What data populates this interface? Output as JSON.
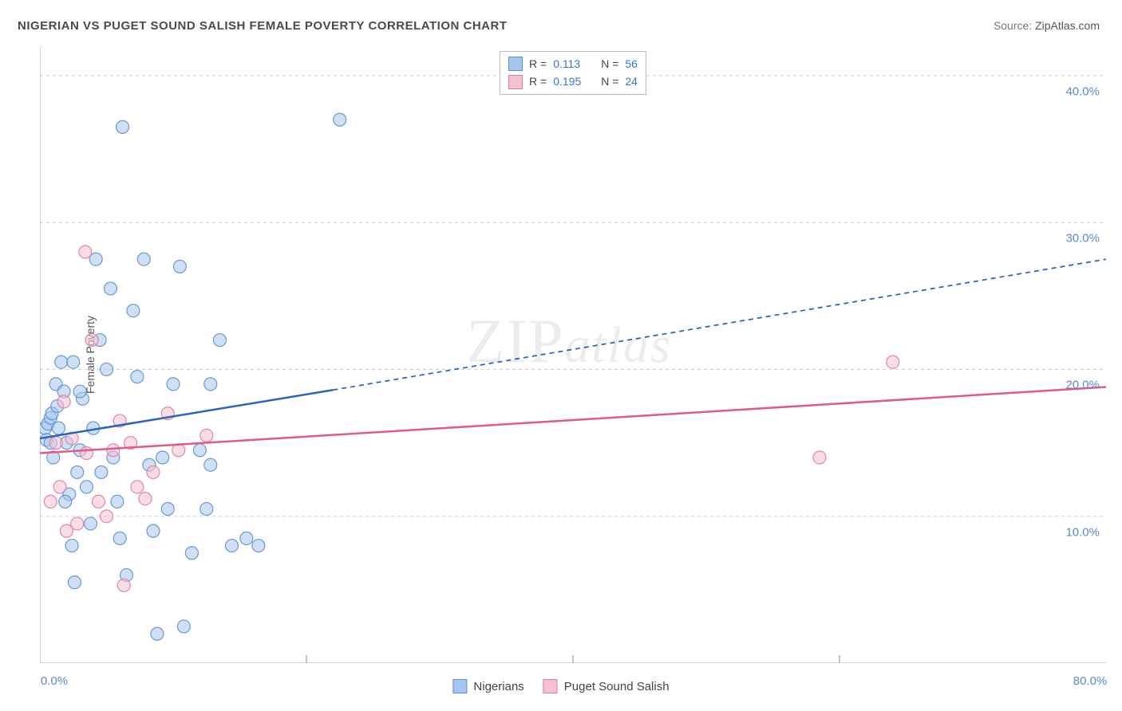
{
  "title": "NIGERIAN VS PUGET SOUND SALISH FEMALE POVERTY CORRELATION CHART",
  "source_label": "Source: ",
  "source_value": "ZipAtlas.com",
  "ylabel": "Female Poverty",
  "watermark_zip": "ZIP",
  "watermark_atlas": "atlas",
  "chart": {
    "type": "scatter",
    "background_color": "#ffffff",
    "plot_border_color": "#bbbbbb",
    "grid_color": "#cccccc",
    "grid_dash": "4,4",
    "xlim": [
      0,
      80
    ],
    "ylim": [
      0,
      42
    ],
    "xlabel_min": "0.0%",
    "xlabel_max": "80.0%",
    "xtick_positions": [
      20,
      40,
      60
    ],
    "yticks": [
      {
        "v": 10,
        "label": "10.0%"
      },
      {
        "v": 20,
        "label": "20.0%"
      },
      {
        "v": 30,
        "label": "30.0%"
      },
      {
        "v": 40,
        "label": "40.0%"
      }
    ],
    "point_radius": 8,
    "point_opacity": 0.55,
    "series": [
      {
        "id": "nigerians",
        "label": "Nigerians",
        "fill": "#a7c6ed",
        "stroke": "#5a8fd6",
        "line_color": "#2a63c0",
        "points": [
          [
            0.4,
            16.0
          ],
          [
            0.5,
            15.2
          ],
          [
            0.6,
            16.3
          ],
          [
            0.8,
            16.7
          ],
          [
            0.8,
            15.0
          ],
          [
            0.9,
            17.0
          ],
          [
            1.0,
            14.0
          ],
          [
            1.2,
            19.0
          ],
          [
            1.3,
            17.5
          ],
          [
            1.4,
            16.0
          ],
          [
            1.6,
            20.5
          ],
          [
            1.8,
            18.5
          ],
          [
            2.0,
            15.0
          ],
          [
            2.2,
            11.5
          ],
          [
            2.4,
            8.0
          ],
          [
            2.6,
            5.5
          ],
          [
            2.8,
            13.0
          ],
          [
            3.0,
            14.5
          ],
          [
            3.2,
            18.0
          ],
          [
            3.5,
            12.0
          ],
          [
            3.8,
            9.5
          ],
          [
            4.2,
            27.5
          ],
          [
            4.5,
            22.0
          ],
          [
            5.0,
            20.0
          ],
          [
            5.3,
            25.5
          ],
          [
            5.5,
            14.0
          ],
          [
            5.8,
            11.0
          ],
          [
            6.0,
            8.5
          ],
          [
            6.2,
            36.5
          ],
          [
            6.5,
            6.0
          ],
          [
            7.0,
            24.0
          ],
          [
            7.3,
            19.5
          ],
          [
            7.8,
            27.5
          ],
          [
            8.2,
            13.5
          ],
          [
            8.5,
            9.0
          ],
          [
            8.8,
            2.0
          ],
          [
            9.2,
            14.0
          ],
          [
            9.6,
            10.5
          ],
          [
            10.0,
            19.0
          ],
          [
            10.5,
            27.0
          ],
          [
            10.8,
            2.5
          ],
          [
            11.4,
            7.5
          ],
          [
            12.0,
            14.5
          ],
          [
            12.5,
            10.5
          ],
          [
            12.8,
            19.0
          ],
          [
            13.5,
            22.0
          ],
          [
            14.4,
            8.0
          ],
          [
            15.5,
            8.5
          ],
          [
            16.4,
            8.0
          ],
          [
            12.8,
            13.5
          ],
          [
            22.5,
            37.0
          ],
          [
            1.9,
            11.0
          ],
          [
            3.0,
            18.5
          ],
          [
            4.0,
            16.0
          ],
          [
            2.5,
            20.5
          ],
          [
            4.6,
            13.0
          ]
        ],
        "trend": {
          "x1": 0,
          "y1": 15.3,
          "x2_solid": 22,
          "y2_solid": 18.6,
          "x2_dash": 80,
          "y2_dash": 27.5,
          "width": 2.5
        }
      },
      {
        "id": "puget",
        "label": "Puget Sound Salish",
        "fill": "#f4c1ce",
        "stroke": "#e27a9a",
        "line_color": "#e05a85",
        "points": [
          [
            0.8,
            11.0
          ],
          [
            1.2,
            15.0
          ],
          [
            1.5,
            12.0
          ],
          [
            1.8,
            17.8
          ],
          [
            2.0,
            9.0
          ],
          [
            2.4,
            15.3
          ],
          [
            2.8,
            9.5
          ],
          [
            3.4,
            28.0
          ],
          [
            3.5,
            14.3
          ],
          [
            3.9,
            22.0
          ],
          [
            4.4,
            11.0
          ],
          [
            5.0,
            10.0
          ],
          [
            5.5,
            14.5
          ],
          [
            6.0,
            16.5
          ],
          [
            6.3,
            5.3
          ],
          [
            6.8,
            15.0
          ],
          [
            7.3,
            12.0
          ],
          [
            7.9,
            11.2
          ],
          [
            8.5,
            13.0
          ],
          [
            9.6,
            17.0
          ],
          [
            10.4,
            14.5
          ],
          [
            12.5,
            15.5
          ],
          [
            58.5,
            14.0
          ],
          [
            64.0,
            20.5
          ]
        ],
        "trend": {
          "x1": 0,
          "y1": 14.3,
          "x2_solid": 80,
          "y2_solid": 18.8,
          "x2_dash": 80,
          "y2_dash": 18.8,
          "width": 2.5
        }
      }
    ],
    "legend_top": [
      {
        "swatch_fill": "#a7c6ed",
        "swatch_stroke": "#5a8fd6",
        "r_label": "R  =",
        "r_value": "0.113",
        "n_label": "N  =",
        "n_value": "56"
      },
      {
        "swatch_fill": "#f4c1ce",
        "swatch_stroke": "#e27a9a",
        "r_label": "R  =",
        "r_value": "0.195",
        "n_label": "N  =",
        "n_value": "24"
      }
    ],
    "legend_bottom": [
      {
        "swatch_fill": "#a7c6ed",
        "swatch_stroke": "#5a8fd6",
        "label": "Nigerians"
      },
      {
        "swatch_fill": "#f4c1ce",
        "swatch_stroke": "#e27a9a",
        "label": "Puget Sound Salish"
      }
    ]
  }
}
